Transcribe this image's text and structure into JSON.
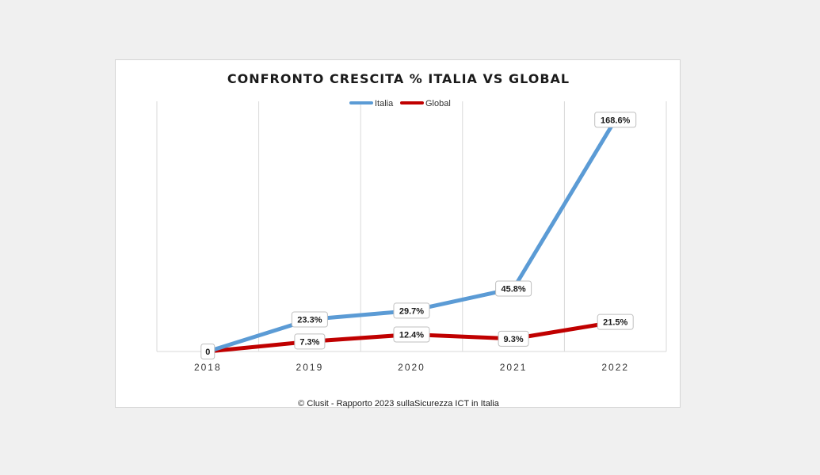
{
  "chart_data": {
    "type": "line",
    "title": "CONFRONTO CRESCITA % ITALIA VS GLOBAL",
    "categories": [
      "2018",
      "2019",
      "2020",
      "2021",
      "2022"
    ],
    "series": [
      {
        "name": "Italia",
        "color": "#5b9bd5",
        "values": [
          0,
          23.3,
          29.7,
          45.8,
          168.6
        ],
        "labels": [
          "0",
          "23.3%",
          "29.7%",
          "45.8%",
          "168.6%"
        ]
      },
      {
        "name": "Global",
        "color": "#c00000",
        "values": [
          0,
          7.3,
          12.4,
          9.3,
          21.5
        ],
        "labels": [
          "",
          "7.3%",
          "12.4%",
          "9.3%",
          "21.5%"
        ]
      }
    ],
    "ylim": [
      0,
      182
    ],
    "grid": "vertical",
    "legend_position": "top-center",
    "source": "© Clusit - Rapporto 2023 sullaSicurezza ICT in Italia"
  }
}
